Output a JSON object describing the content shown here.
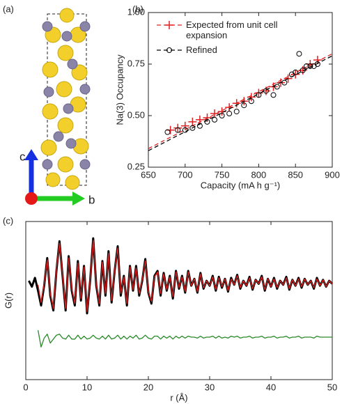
{
  "structure": {
    "label": "(a)",
    "axis_c": "c",
    "axis_b": "b"
  },
  "chart_data": [
    {
      "type": "scatter",
      "label": "(b)",
      "x_label": "Capacity (mA h g⁻¹)",
      "y_label": "Na(3) Occupancy",
      "xlim": [
        650,
        900
      ],
      "xticks": [
        650,
        700,
        750,
        800,
        850,
        900
      ],
      "ylim": [
        0.25,
        1.0
      ],
      "yticks": [
        0.25,
        {
          "value": 0.5,
          "label": "0.50"
        },
        0.75,
        {
          "value": 1.0,
          "label": "1.00"
        }
      ],
      "legend": "upper left",
      "fit_x": [
        650,
        900
      ],
      "series": [
        {
          "name": "Expected from unit cell expansion",
          "color": "#e02020",
          "marker": "plus",
          "fit": [
            0.34,
            0.8
          ],
          "x": [
            680,
            690,
            700,
            710,
            720,
            730,
            740,
            750,
            760,
            770,
            780,
            790,
            800,
            810,
            820,
            830,
            840,
            850,
            860,
            870,
            880
          ],
          "values": [
            0.43,
            0.44,
            0.45,
            0.47,
            0.48,
            0.49,
            0.51,
            0.52,
            0.54,
            0.56,
            0.57,
            0.59,
            0.61,
            0.62,
            0.64,
            0.66,
            0.68,
            0.7,
            0.72,
            0.75,
            0.77
          ]
        },
        {
          "name": "Refined",
          "color": "#000000",
          "marker": "circle",
          "fit": [
            0.33,
            0.79
          ],
          "x": [
            676,
            690,
            700,
            710,
            720,
            730,
            740,
            750,
            760,
            770,
            780,
            790,
            800,
            810,
            820,
            825,
            835,
            845,
            850,
            855,
            860,
            865,
            870,
            875,
            880
          ],
          "values": [
            0.42,
            0.43,
            0.43,
            0.44,
            0.45,
            0.47,
            0.48,
            0.5,
            0.51,
            0.52,
            0.55,
            0.57,
            0.6,
            0.62,
            0.6,
            0.64,
            0.66,
            0.7,
            0.71,
            0.8,
            0.72,
            0.74,
            0.74,
            0.74,
            0.75
          ]
        }
      ]
    },
    {
      "type": "line",
      "label": "(c)",
      "x_label": "r (Å)",
      "y_label": "G(r)",
      "xlim": [
        0,
        50
      ],
      "xticks": [
        0,
        10,
        20,
        30,
        40,
        50
      ],
      "ylim": [
        -8,
        8
      ],
      "x": [
        0.5,
        1,
        1.5,
        2,
        2.5,
        3,
        3.5,
        4,
        4.5,
        5,
        5.5,
        6,
        6.5,
        7,
        7.5,
        8,
        8.5,
        9,
        9.5,
        10,
        10.5,
        11,
        11.5,
        12,
        12.5,
        13,
        13.5,
        14,
        14.5,
        15,
        15.5,
        16,
        16.5,
        17,
        17.5,
        18,
        18.5,
        19,
        19.5,
        20,
        20.5,
        21,
        21.5,
        22,
        22.5,
        23,
        23.5,
        24,
        24.5,
        25,
        25.5,
        26,
        26.5,
        27,
        27.5,
        28,
        28.5,
        29,
        29.5,
        30,
        30.5,
        31,
        31.5,
        32,
        32.5,
        33,
        33.5,
        34,
        34.5,
        35,
        35.5,
        36,
        36.5,
        37,
        37.5,
        38,
        38.5,
        39,
        39.5,
        40,
        40.5,
        41,
        41.5,
        42,
        42.5,
        43,
        43.5,
        44,
        44.5,
        45,
        45.5,
        46,
        46.5,
        47,
        47.5,
        48,
        48.5,
        49,
        49.5,
        50
      ],
      "series": [
        {
          "color": "#000000",
          "values": [
            2.0,
            1.4,
            2.3,
            1.0,
            -0.5,
            1.5,
            4.3,
            0.5,
            -1.0,
            3.0,
            6.0,
            2.5,
            -1.0,
            4.5,
            1.0,
            -0.5,
            4.0,
            0.0,
            3.5,
            -1.3,
            2.0,
            6.3,
            1.5,
            -0.5,
            4.0,
            0.5,
            5.0,
            -0.2,
            3.0,
            5.5,
            0.5,
            2.5,
            -0.5,
            3.5,
            1.0,
            3.5,
            0.5,
            2.0,
            4.2,
            0.8,
            -0.3,
            2.5,
            3.0,
            0.5,
            2.8,
            1.0,
            2.5,
            0.2,
            3.0,
            1.2,
            2.5,
            0.8,
            3.0,
            1.5,
            2.2,
            0.8,
            2.8,
            1.2,
            2.0,
            1.5,
            2.5,
            1.0,
            2.4,
            1.3,
            2.2,
            0.9,
            2.3,
            1.6,
            2.6,
            1.2,
            2.0,
            1.5,
            2.4,
            1.1,
            2.1,
            1.7,
            2.5,
            1.0,
            2.2,
            1.4,
            2.3,
            1.2,
            2.0,
            1.6,
            2.4,
            1.1,
            2.1,
            1.5,
            2.3,
            1.3,
            2.2,
            1.6,
            2.0,
            1.2,
            2.3,
            1.5,
            2.1,
            1.4,
            2.0,
            1.7
          ]
        },
        {
          "color": "#e02020",
          "values": [
            null,
            null,
            null,
            1.6,
            -0.2,
            1.7,
            4.1,
            0.7,
            -0.8,
            3.2,
            5.8,
            2.6,
            -0.8,
            4.3,
            1.2,
            -0.3,
            3.8,
            0.2,
            3.4,
            -1.1,
            2.1,
            6.1,
            1.6,
            -0.3,
            3.9,
            0.7,
            4.8,
            0.0,
            3.1,
            5.3,
            0.7,
            2.4,
            -0.3,
            3.4,
            1.1,
            3.3,
            0.7,
            2.1,
            4.0,
            0.9,
            -0.1,
            2.4,
            2.9,
            0.7,
            2.7,
            1.1,
            2.4,
            0.4,
            2.9,
            1.3,
            2.4,
            0.9,
            2.9,
            1.5,
            2.2,
            0.9,
            2.7,
            1.3,
            2.0,
            1.5,
            2.4,
            1.1,
            2.3,
            1.4,
            2.2,
            1.0,
            2.2,
            1.6,
            2.5,
            1.3,
            2.0,
            1.5,
            2.3,
            1.2,
            2.1,
            1.7,
            2.4,
            1.1,
            2.2,
            1.4,
            2.2,
            1.3,
            2.0,
            1.6,
            2.3,
            1.2,
            2.1,
            1.5,
            2.2,
            1.4,
            2.2,
            1.6,
            2.0,
            1.3,
            2.2,
            1.5,
            2.1,
            1.4,
            2.0,
            1.7
          ]
        },
        {
          "color": "#2a8a2a",
          "values": [
            null,
            null,
            null,
            -3.0,
            -4.7,
            -3.8,
            -3.4,
            -4.3,
            -3.9,
            -3.5,
            -3.4,
            -3.8,
            -3.9,
            -3.5,
            -3.9,
            -3.9,
            -3.5,
            -3.9,
            -3.6,
            -3.9,
            -3.8,
            -3.5,
            -3.8,
            -3.9,
            -3.6,
            -3.9,
            -3.5,
            -3.9,
            -3.8,
            -3.5,
            -3.9,
            -3.6,
            -3.9,
            -3.6,
            -3.8,
            -3.5,
            -3.9,
            -3.8,
            -3.5,
            -3.8,
            -3.9,
            -3.6,
            -3.6,
            -3.9,
            -3.6,
            -3.8,
            -3.6,
            -3.9,
            -3.6,
            -3.8,
            -3.6,
            -3.8,
            -3.6,
            -3.7,
            -3.7,
            -3.8,
            -3.6,
            -3.8,
            -3.7,
            -3.7,
            -3.6,
            -3.8,
            -3.6,
            -3.8,
            -3.7,
            -3.8,
            -3.6,
            -3.7,
            -3.6,
            -3.8,
            -3.7,
            -3.7,
            -3.6,
            -3.8,
            -3.7,
            -3.7,
            -3.6,
            -3.8,
            -3.7,
            -3.7,
            -3.6,
            -3.8,
            -3.7,
            -3.7,
            -3.6,
            -3.8,
            -3.7,
            -3.7,
            -3.6,
            -3.8,
            -3.7,
            -3.7,
            -3.7,
            -3.8,
            -3.6,
            -3.7,
            -3.7,
            -3.7,
            -3.7,
            -3.7
          ]
        }
      ]
    }
  ]
}
